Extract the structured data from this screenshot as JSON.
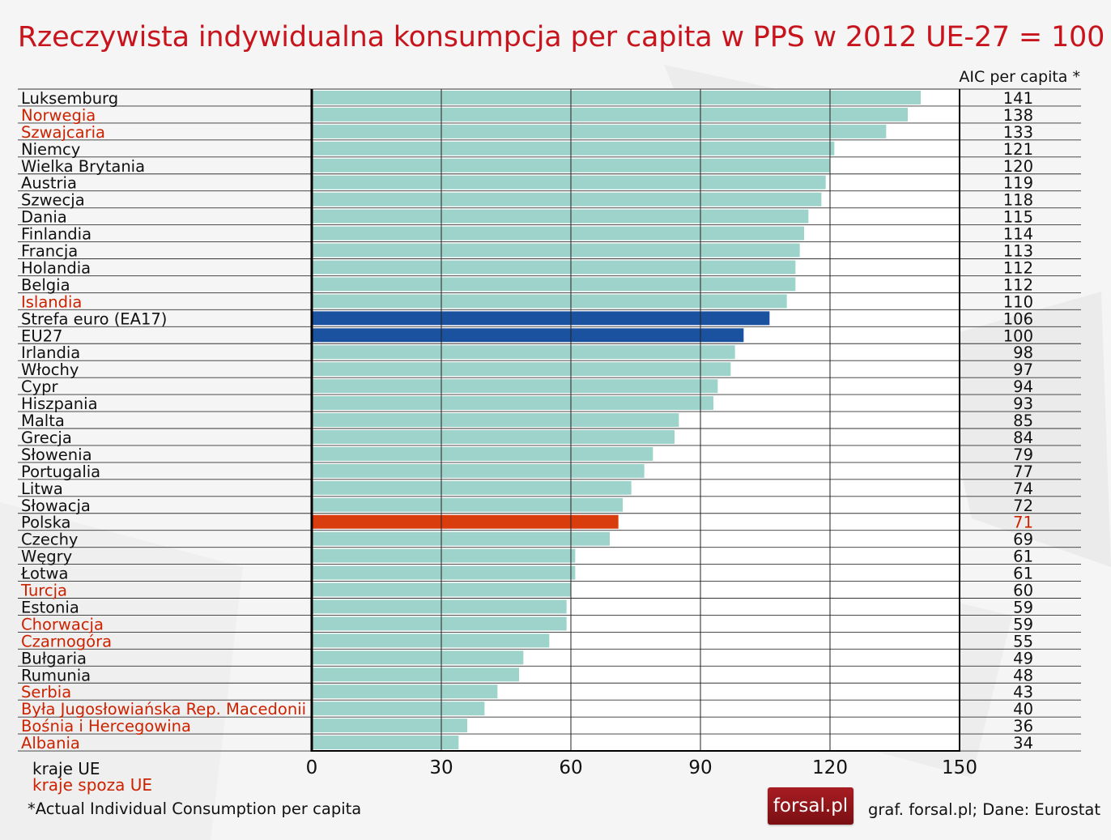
{
  "title": "Rzeczywista indywidualna konsumpcja per capita w PPS w 2012 UE-27 = 100",
  "column_header": "AIC per capita *",
  "legend": {
    "eu_label": "kraje UE",
    "non_eu_label": "kraje spoza UE"
  },
  "footnote": "*Actual Individual Consumption per capita",
  "logo_text": "forsal.pl",
  "source": "graf. forsal.pl;  Dane: Eurostat",
  "colors": {
    "title": "#c8141c",
    "bar_default": "#9dd3cb",
    "bar_aggregate": "#1a52a0",
    "bar_highlight": "#d93d0e",
    "text_eu": "#111111",
    "text_non_eu": "#cc2200",
    "highlight_value": "#cc2200"
  },
  "chart_data": {
    "type": "bar",
    "orientation": "horizontal",
    "xlim": [
      0,
      150
    ],
    "xticks": [
      0,
      30,
      60,
      90,
      120,
      150
    ],
    "grid": true,
    "categories": [
      "Luksemburg",
      "Norwegia",
      "Szwajcaria",
      "Niemcy",
      "Wielka Brytania",
      "Austria",
      "Szwecja",
      "Dania",
      "Finlandia",
      "Francja",
      "Holandia",
      "Belgia",
      "Islandia",
      "Strefa euro (EA17)",
      "EU27",
      "Irlandia",
      "Włochy",
      "Cypr",
      "Hiszpania",
      "Malta",
      "Grecja",
      "Słowenia",
      "Portugalia",
      "Litwa",
      "Słowacja",
      "Polska",
      "Czechy",
      "Węgry",
      "Łotwa",
      "Turcja",
      "Estonia",
      "Chorwacja",
      "Czarnogóra",
      "Bułgaria",
      "Rumunia",
      "Serbia",
      "Była Jugosłowiańska Rep. Macedonii",
      "Bośnia i Hercegowina",
      "Albania"
    ],
    "values": [
      141,
      138,
      133,
      121,
      120,
      119,
      118,
      115,
      114,
      113,
      112,
      112,
      110,
      106,
      100,
      98,
      97,
      94,
      93,
      85,
      84,
      79,
      77,
      74,
      72,
      71,
      69,
      61,
      61,
      60,
      59,
      59,
      55,
      49,
      48,
      43,
      40,
      36,
      34
    ],
    "group": [
      "eu",
      "non-eu",
      "non-eu",
      "eu",
      "eu",
      "eu",
      "eu",
      "eu",
      "eu",
      "eu",
      "eu",
      "eu",
      "non-eu",
      "aggregate",
      "aggregate",
      "eu",
      "eu",
      "eu",
      "eu",
      "eu",
      "eu",
      "eu",
      "eu",
      "eu",
      "eu",
      "highlight",
      "eu",
      "eu",
      "eu",
      "non-eu",
      "eu",
      "non-eu",
      "non-eu",
      "eu",
      "eu",
      "non-eu",
      "non-eu",
      "non-eu",
      "non-eu"
    ]
  }
}
